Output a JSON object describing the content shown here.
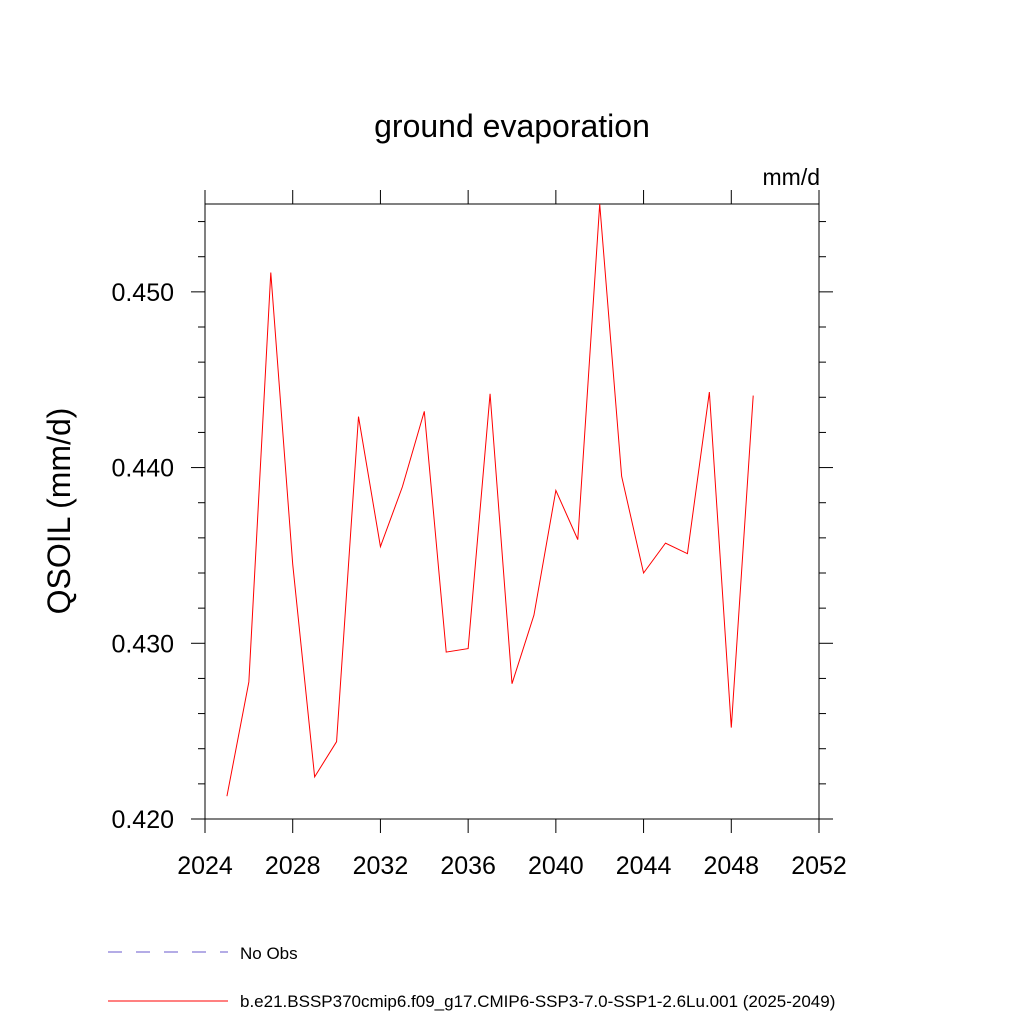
{
  "chart_data": {
    "type": "line",
    "title": "ground evaporation",
    "units": "mm/d",
    "ylabel": "QSOIL  (mm/d)",
    "xlabel": "",
    "xlim": [
      2024,
      2052
    ],
    "ylim": [
      0.42,
      0.455
    ],
    "xticks": [
      2024,
      2028,
      2032,
      2036,
      2040,
      2044,
      2048,
      2052
    ],
    "xtick_labels": [
      "2024",
      "2028",
      "2032",
      "2036",
      "2040",
      "2044",
      "2048",
      "2052"
    ],
    "yticks": [
      0.42,
      0.43,
      0.44,
      0.45
    ],
    "ytick_labels": [
      "0.420",
      "0.430",
      "0.440",
      "0.450"
    ],
    "grid": false,
    "legend_position": "bottom",
    "series": [
      {
        "name": "b.e21.BSSP370cmip6.f09_g17.CMIP6-SSP3-7.0-SSP1-2.6Lu.001 (2025-2049)",
        "color": "#ff0000",
        "style": "solid",
        "x": [
          2025,
          2026,
          2027,
          2028,
          2029,
          2030,
          2031,
          2032,
          2033,
          2034,
          2035,
          2036,
          2037,
          2038,
          2039,
          2040,
          2041,
          2042,
          2043,
          2044,
          2045,
          2046,
          2047,
          2048,
          2049
        ],
        "y": [
          0.4213,
          0.4278,
          0.4511,
          0.4345,
          0.4224,
          0.4244,
          0.4429,
          0.4355,
          0.4389,
          0.4432,
          0.4295,
          0.4297,
          0.4442,
          0.4277,
          0.4316,
          0.4387,
          0.4359,
          0.455,
          0.4395,
          0.434,
          0.4357,
          0.4351,
          0.4443,
          0.4252,
          0.4441
        ]
      }
    ],
    "legend": [
      {
        "label": "No Obs",
        "color": "#6a5acd",
        "style": "dashed"
      },
      {
        "label": "b.e21.BSSP370cmip6.f09_g17.CMIP6-SSP3-7.0-SSP1-2.6Lu.001 (2025-2049)",
        "color": "#ff0000",
        "style": "solid"
      }
    ]
  }
}
